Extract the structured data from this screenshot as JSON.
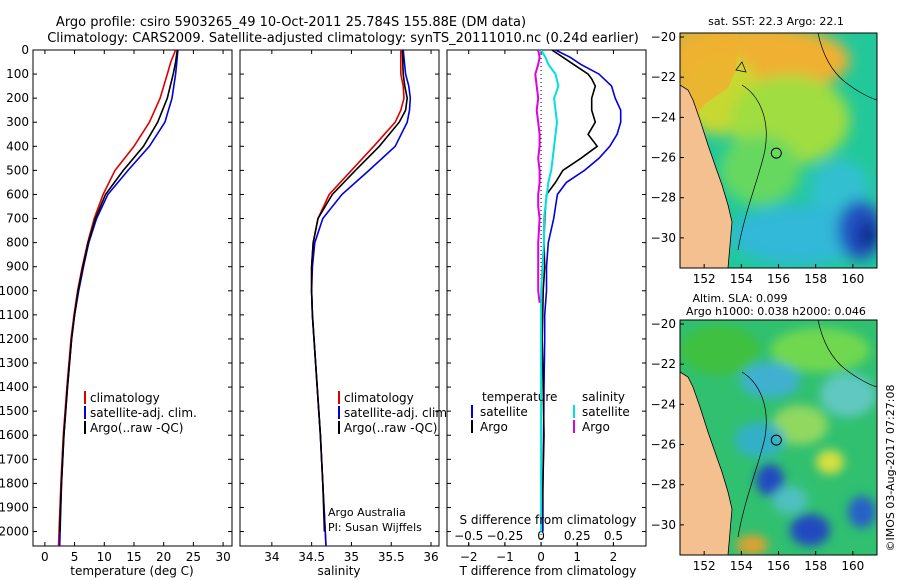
{
  "header": {
    "line1": "Argo profile: csiro 5903265_49 10-Oct-2011 25.784S 155.88E (DM data)",
    "line2": "Climatology: CARS2009. Satellite-adjusted climatology: synTS_20111010.nc (0.24d earlier)"
  },
  "footer": {
    "credit": "Argo Australia",
    "pi": "PI: Susan Wijffels",
    "imos": "©IMOS 03-Aug-2017 07:27:08"
  },
  "colors": {
    "climatology": "#e00000",
    "satellite": "#0000e0",
    "argo": "#000000",
    "sal_satellite": "#00e0e0",
    "sal_argo": "#e000e0",
    "land": "#f5c090"
  },
  "chart_data": [
    {
      "type": "line",
      "id": "temperature",
      "title": "",
      "xlabel": "temperature (deg C)",
      "ylabel": "",
      "xlim": [
        -2,
        31.5
      ],
      "ylim": [
        2060,
        0
      ],
      "xticks": [
        0,
        5,
        10,
        15,
        20,
        25,
        30
      ],
      "yticks": [
        0,
        100,
        200,
        300,
        400,
        500,
        600,
        700,
        800,
        900,
        1000,
        1100,
        1200,
        1300,
        1400,
        1500,
        1600,
        1700,
        1800,
        1900,
        2000
      ],
      "legend": [
        "climatology",
        "satellite-adj. clim.",
        "Argo(..raw -QC)"
      ],
      "series": [
        {
          "name": "climatology",
          "color": "#e00000",
          "y": [
            0,
            50,
            100,
            200,
            300,
            400,
            500,
            600,
            700,
            800,
            900,
            1000,
            1100,
            1200,
            1400,
            1600,
            1800,
            2060
          ],
          "values": [
            22.0,
            21.2,
            20.6,
            19.4,
            17.6,
            15.0,
            11.8,
            9.8,
            8.3,
            7.2,
            6.3,
            5.5,
            4.9,
            4.4,
            3.7,
            3.1,
            2.7,
            2.3
          ]
        },
        {
          "name": "satellite-adj. clim.",
          "color": "#0000e0",
          "y": [
            0,
            50,
            100,
            200,
            300,
            400,
            500,
            600,
            700,
            800,
            900,
            1000,
            1100,
            1200,
            1400,
            1600,
            1800,
            2060
          ],
          "values": [
            22.4,
            22.2,
            22.0,
            21.4,
            20.2,
            17.6,
            14.0,
            10.6,
            8.7,
            7.4,
            6.5,
            5.7,
            5.0,
            4.5,
            3.8,
            3.2,
            2.8,
            2.5
          ]
        },
        {
          "name": "Argo(..raw -QC)",
          "color": "#000000",
          "y": [
            0,
            50,
            100,
            200,
            300,
            400,
            500,
            600,
            700,
            800,
            900,
            1000,
            1100,
            1200,
            1400,
            1600,
            1800,
            2000
          ],
          "values": [
            22.3,
            22.0,
            21.6,
            20.6,
            19.0,
            16.6,
            13.2,
            10.2,
            8.5,
            7.3,
            6.4,
            5.6,
            5.0,
            4.5,
            3.8,
            3.2,
            2.8,
            2.5
          ]
        }
      ]
    },
    {
      "type": "line",
      "id": "salinity",
      "title": "",
      "xlabel": "salinity",
      "ylabel": "",
      "xlim": [
        33.6,
        36.1
      ],
      "ylim": [
        2060,
        0
      ],
      "xticks": [
        34,
        34.5,
        35,
        35.5,
        36
      ],
      "legend": [
        "climatology",
        "satellite-adj. clim.",
        "Argo(..raw -QC)"
      ],
      "series": [
        {
          "name": "climatology",
          "color": "#e00000",
          "y": [
            0,
            100,
            150,
            200,
            250,
            300,
            400,
            500,
            600,
            700,
            800,
            900,
            1000,
            1100,
            1200,
            1300,
            1400,
            1500,
            1600,
            1800,
            2060
          ],
          "values": [
            35.62,
            35.62,
            35.65,
            35.66,
            35.62,
            35.55,
            35.28,
            35.0,
            34.72,
            34.58,
            34.52,
            34.5,
            34.5,
            34.51,
            34.53,
            34.55,
            34.57,
            34.59,
            34.61,
            34.64,
            34.68
          ]
        },
        {
          "name": "satellite-adj. clim.",
          "color": "#0000e0",
          "y": [
            0,
            100,
            150,
            200,
            250,
            300,
            400,
            500,
            600,
            700,
            800,
            900,
            1000,
            1100,
            1200,
            1300,
            1400,
            1500,
            1600,
            1800,
            2060
          ],
          "values": [
            35.65,
            35.68,
            35.72,
            35.74,
            35.73,
            35.7,
            35.55,
            35.22,
            34.88,
            34.64,
            34.54,
            34.51,
            34.5,
            34.51,
            34.53,
            34.55,
            34.57,
            34.59,
            34.61,
            34.64,
            34.68
          ]
        },
        {
          "name": "Argo(..raw -QC)",
          "color": "#000000",
          "y": [
            0,
            100,
            150,
            200,
            250,
            300,
            400,
            500,
            600,
            700,
            800,
            900,
            1000,
            1100,
            1200,
            1300,
            1400,
            1500,
            1600,
            1800,
            2000
          ],
          "values": [
            35.64,
            35.65,
            35.67,
            35.7,
            35.68,
            35.6,
            35.35,
            35.05,
            34.76,
            34.58,
            34.52,
            34.5,
            34.5,
            34.51,
            34.53,
            34.55,
            34.57,
            34.59,
            34.61,
            34.64,
            34.66
          ]
        }
      ]
    },
    {
      "type": "line",
      "id": "difference",
      "title": "",
      "xlabel": "T difference from climatology",
      "xlabel_top": "S difference from climatology",
      "ylabel": "",
      "xlim": [
        -2.6,
        2.9
      ],
      "xlim_top": [
        -0.65,
        0.725
      ],
      "ylim": [
        2060,
        0
      ],
      "xticks": [
        -2,
        -1,
        0,
        1,
        2
      ],
      "xticks_top": [
        -0.5,
        -0.25,
        0,
        0.25,
        0.5
      ],
      "legend_temperature": {
        "title": "temperature",
        "items": [
          "satellite",
          "Argo"
        ]
      },
      "legend_salinity": {
        "title": "salinity",
        "items": [
          "satellite",
          "Argo"
        ]
      },
      "series": [
        {
          "name": "temperature satellite",
          "color": "#0000e0",
          "axis": "T",
          "y": [
            0,
            30,
            60,
            100,
            150,
            200,
            250,
            300,
            350,
            400,
            450,
            500,
            550,
            600,
            700,
            800,
            900,
            1000,
            1100,
            1200,
            1400,
            1600,
            1800,
            2000
          ],
          "values": [
            0.4,
            0.8,
            1.1,
            1.6,
            1.95,
            2.05,
            2.2,
            2.2,
            2.1,
            1.9,
            1.6,
            1.2,
            0.7,
            0.45,
            0.35,
            0.2,
            0.15,
            0.15,
            0.1,
            0.1,
            0.08,
            0.07,
            0.05,
            0.05
          ]
        },
        {
          "name": "temperature Argo",
          "color": "#000000",
          "axis": "T",
          "y": [
            0,
            30,
            60,
            100,
            120,
            150,
            200,
            250,
            300,
            350,
            400,
            450,
            500,
            550,
            600,
            700,
            800,
            900,
            1000,
            1200,
            1400,
            1600,
            1800,
            2000
          ],
          "values": [
            0.3,
            0.6,
            0.9,
            1.3,
            1.4,
            1.5,
            1.4,
            1.4,
            1.5,
            1.3,
            1.55,
            1.1,
            0.6,
            0.4,
            0.15,
            0.1,
            0.08,
            0.1,
            0.06,
            0.03,
            0.06,
            0.08,
            0.05,
            0.02
          ]
        },
        {
          "name": "salinity satellite",
          "color": "#00e0e0",
          "axis": "S",
          "y": [
            0,
            30,
            60,
            100,
            150,
            200,
            250,
            300,
            350,
            400,
            450,
            500,
            550,
            600,
            650,
            700,
            800,
            900,
            1000,
            1100,
            1200,
            1300,
            1400,
            1600,
            1800,
            2000
          ],
          "values": [
            0.0,
            0.03,
            0.05,
            0.1,
            0.12,
            0.09,
            0.1,
            0.11,
            0.1,
            0.09,
            0.08,
            0.07,
            0.05,
            0.04,
            0.03,
            0.02,
            0.02,
            0.01,
            0.0,
            0.0,
            0.0,
            0.0,
            0.0,
            0.0,
            0.0,
            0.0
          ]
        },
        {
          "name": "salinity Argo",
          "color": "#e000e0",
          "axis": "S",
          "y": [
            0,
            30,
            60,
            100,
            150,
            200,
            250,
            300,
            350,
            400,
            450,
            500,
            550,
            600,
            650,
            700,
            800,
            900,
            1000,
            1050
          ],
          "values": [
            -0.02,
            -0.01,
            -0.02,
            -0.04,
            -0.03,
            -0.02,
            -0.03,
            -0.02,
            -0.01,
            -0.01,
            -0.02,
            -0.01,
            -0.01,
            -0.02,
            -0.02,
            -0.01,
            -0.02,
            -0.02,
            -0.02,
            -0.01
          ]
        }
      ]
    },
    {
      "type": "heatmap",
      "id": "sst_map",
      "title": "sat. SST: 22.3  Argo: 22.1",
      "xticks": [
        152,
        154,
        156,
        158,
        160
      ],
      "yticks": [
        -20,
        -22,
        -24,
        -26,
        -28,
        -30
      ],
      "xlim": [
        150.7,
        161.3
      ],
      "ylim": [
        -31.5,
        -19.8
      ],
      "argo_lon": 155.88,
      "argo_lat": -25.78
    },
    {
      "type": "heatmap",
      "id": "sla_map",
      "title": "Altim. SLA: 0.099",
      "subtitle": "Argo h1000: 0.038 h2000: 0.046",
      "xticks": [
        152,
        154,
        156,
        158,
        160
      ],
      "yticks": [
        -20,
        -22,
        -24,
        -26,
        -28,
        -30
      ],
      "xlim": [
        150.7,
        161.3
      ],
      "ylim": [
        -31.5,
        -19.8
      ],
      "argo_lon": 155.88,
      "argo_lat": -25.78
    }
  ]
}
